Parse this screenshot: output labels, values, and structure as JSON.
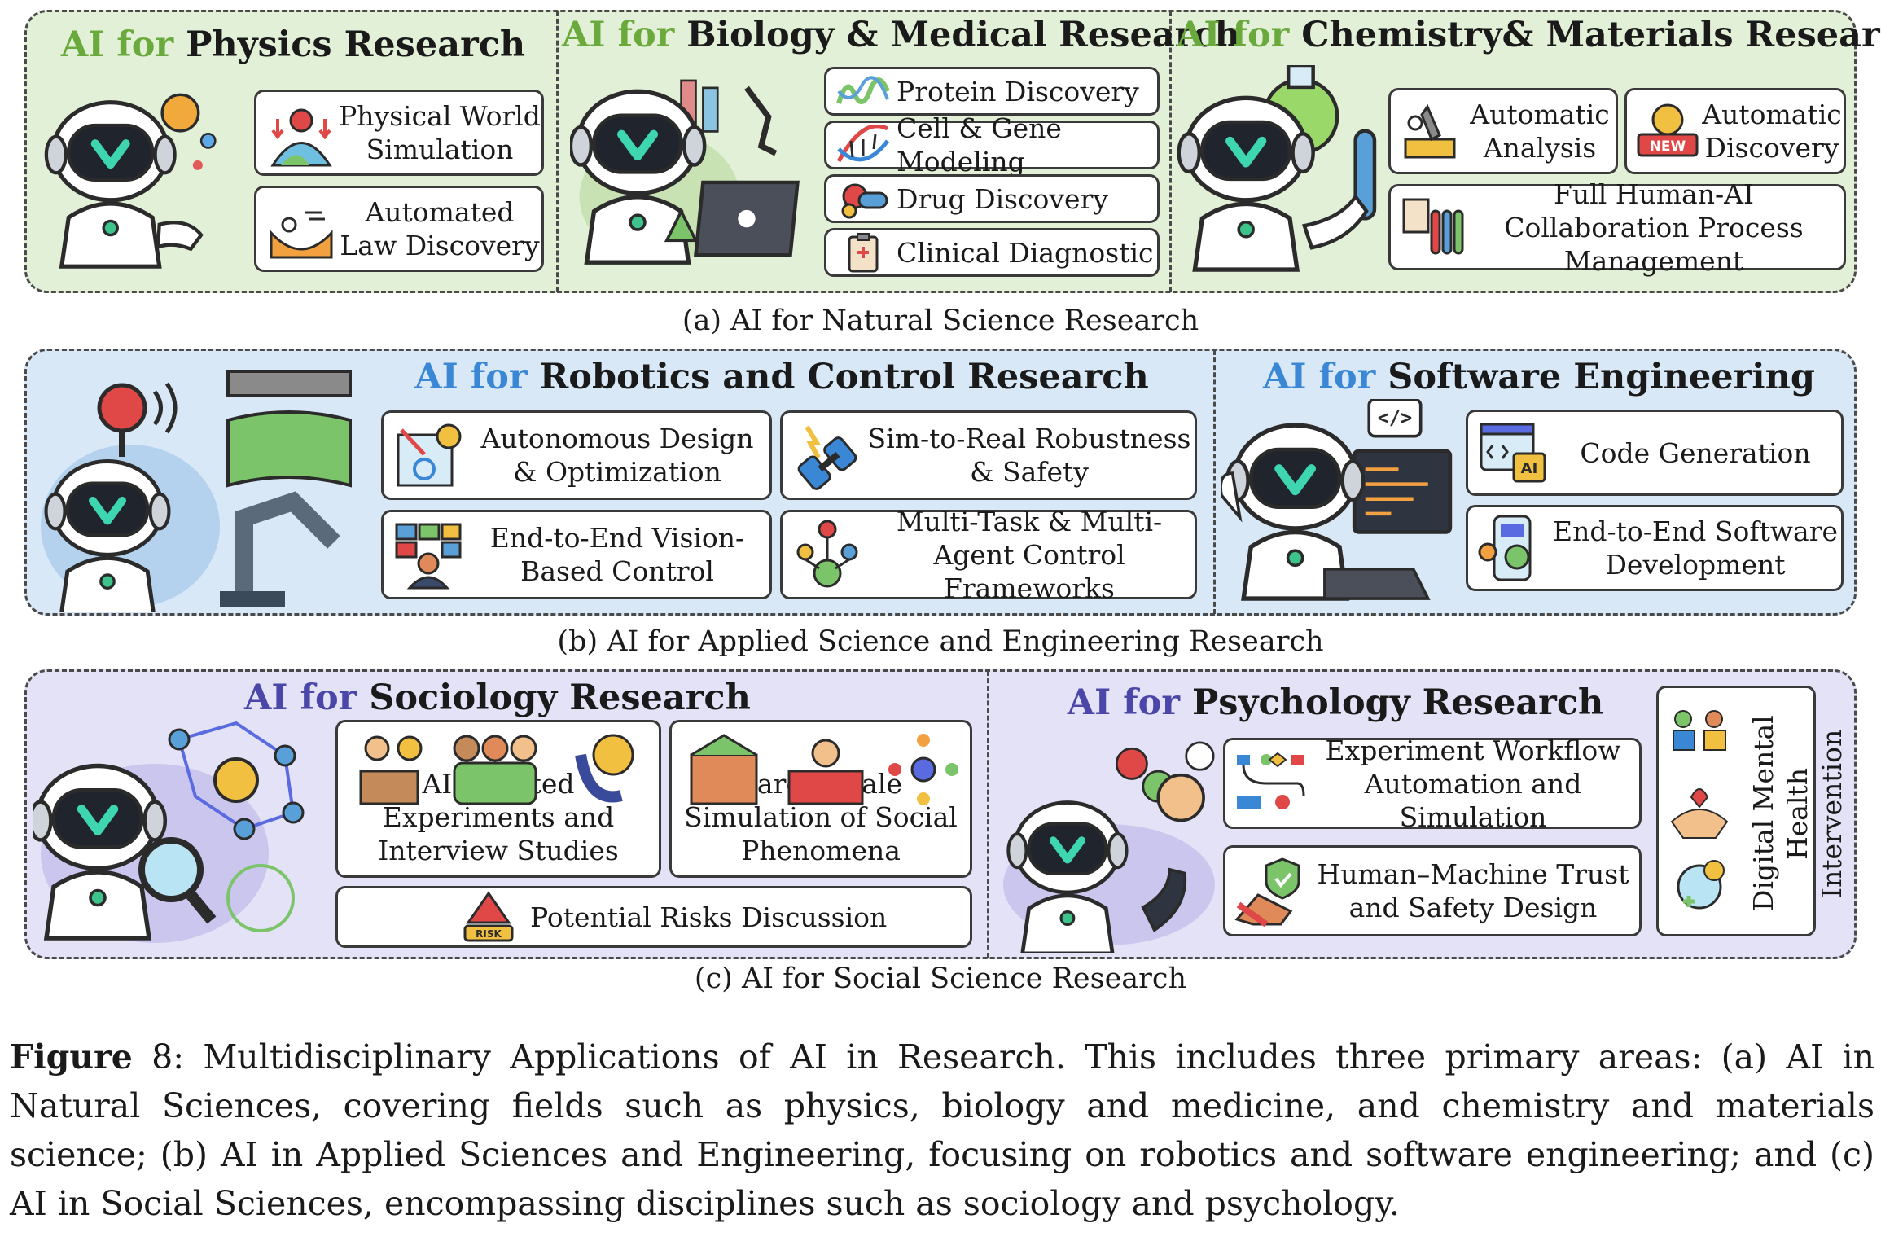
{
  "section_a": {
    "caption": "(a) AI for Natural Science Research",
    "physics": {
      "pre": "AI for",
      "title": "Physics Research",
      "items": [
        "Physical World Simulation",
        "Automated Law Discovery"
      ]
    },
    "biology": {
      "pre": "AI for",
      "title": "Biology & Medical Research",
      "items": [
        "Protein Discovery",
        "Cell & Gene Modeling",
        "Drug Discovery",
        "Clinical Diagnostic"
      ]
    },
    "chemistry": {
      "pre": "AI for",
      "title": "Chemistry& Materials Research",
      "items": [
        "Automatic Analysis",
        "Automatic Discovery",
        "Full Human-AI Collaboration Process Management"
      ],
      "badge": "NEW"
    }
  },
  "section_b": {
    "caption": "(b) AI for Applied Science and Engineering Research",
    "robotics": {
      "pre": "AI for",
      "title": "Robotics and Control Research",
      "items": [
        "Autonomous Design & Optimization",
        "Sim-to-Real Robustness & Safety",
        "End-to-End Vision-Based Control",
        "Multi-Task & Multi-Agent Control Frameworks"
      ]
    },
    "software": {
      "pre": "AI for",
      "title": "Software Engineering",
      "items": [
        "Code Generation",
        "End-to-End Software Development"
      ],
      "code_glyph": "</>",
      "ai_badge": "AI"
    }
  },
  "section_c": {
    "caption": "(c) AI for Social Science Research",
    "sociology": {
      "pre": "AI for",
      "title": "Sociology Research",
      "items": [
        "AI-Assisted Experiments and Interview Studies",
        "Large-Scale Simulation of Social Phenomena",
        "Potential Risks Discussion"
      ],
      "risk_badge": "RISK"
    },
    "psychology": {
      "pre": "AI for",
      "title": "Psychology Research",
      "items": [
        "Experiment Workflow Automation and Simulation",
        "Human–Machine Trust and Safety Design"
      ],
      "side_item": "Digital Mental Health Intervention"
    }
  },
  "figure_caption": {
    "label": "Figure",
    "number": "8",
    "text": ": Multidisciplinary Applications of AI in Research. This includes three primary areas: (a) AI in Natural Sciences, covering fields such as physics, biology and medicine, and chemistry and materials science; (b) AI in Applied Sciences and Engineering, focusing on robotics and software engineering; and (c) AI in Social Sciences, encompassing disciplines such as sociology and psychology."
  },
  "colors": {
    "green_panel": "#e3f0d8",
    "green_accent": "#6aaa3c",
    "blue_panel": "#d9e8f7",
    "blue_accent": "#3a87d6",
    "purple_panel": "#e4e2f6",
    "purple_accent": "#4a47a8"
  }
}
